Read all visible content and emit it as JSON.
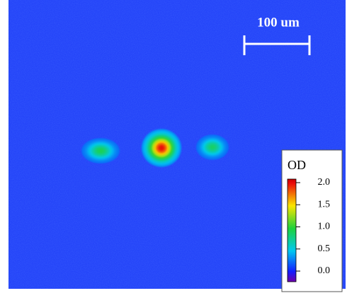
{
  "scale_bar": {
    "label": "100 um"
  },
  "colorbar": {
    "title": "OD",
    "lim": [
      -0.24,
      2.08
    ],
    "ticks": [
      {
        "value": 0,
        "label": "0.0"
      },
      {
        "value": 0.5,
        "label": "0.5"
      },
      {
        "value": 1,
        "label": "1.0"
      },
      {
        "value": 1.5,
        "label": "1.5"
      },
      {
        "value": 2,
        "label": "2.0"
      }
    ]
  },
  "clouds": [
    {
      "peak": 0.9
    },
    {
      "peak": 2.0
    },
    {
      "peak": 0.85
    }
  ]
}
